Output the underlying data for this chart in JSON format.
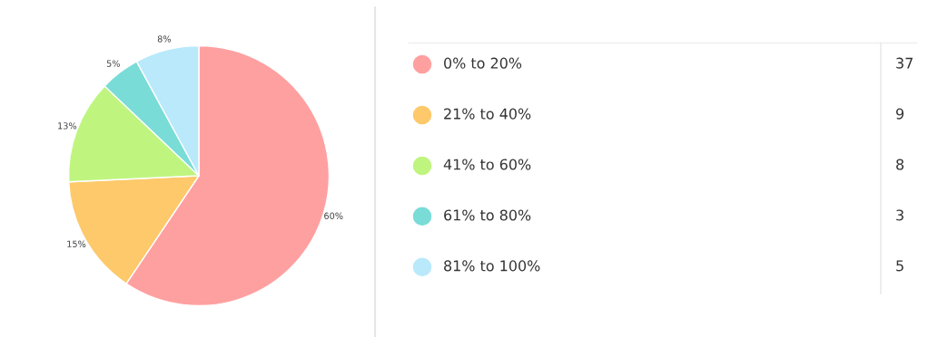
{
  "chart_data": {
    "type": "pie",
    "categories": [
      "0% to 20%",
      "21% to 40%",
      "41% to 60%",
      "61% to 80%",
      "81% to 100%"
    ],
    "values": [
      60,
      15,
      13,
      5,
      8
    ],
    "annotations": [
      "37",
      "9",
      "8",
      "3",
      "5"
    ],
    "colors": [
      "#ffa0a0",
      "#fdc96b",
      "#bff57f",
      "#79dcd7",
      "#b9e9fb"
    ],
    "value_labels": [
      "60%",
      "15%",
      "13%",
      "5%",
      "8%"
    ],
    "legend": "right"
  }
}
